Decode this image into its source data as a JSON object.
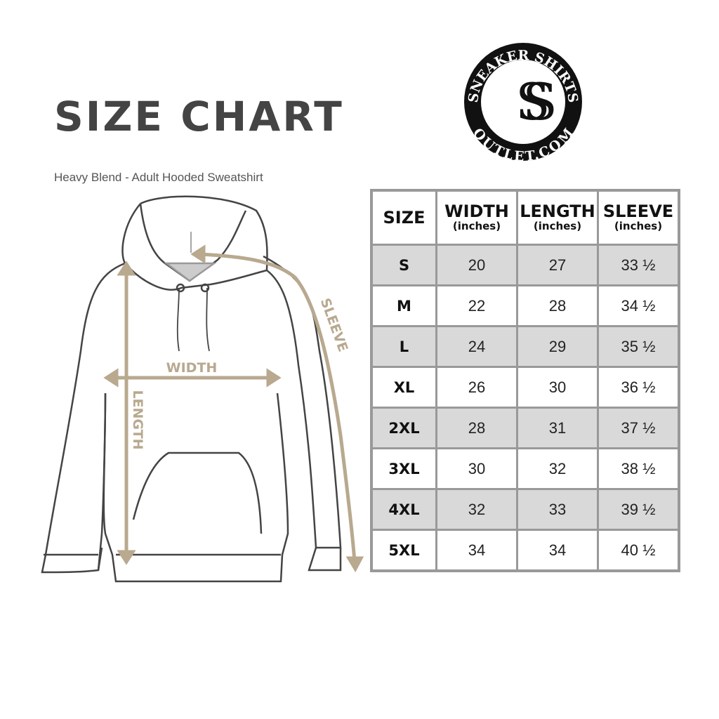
{
  "header": {
    "title": "SIZE CHART",
    "subtitle": "Heavy Blend - Adult Hooded Sweatshirt"
  },
  "logo": {
    "text_top": "SNEAKER SHIRTS",
    "text_bottom": "OUTLET.COM",
    "monogram": "SS"
  },
  "diagram": {
    "labels": {
      "width": "WIDTH",
      "length": "LENGTH",
      "sleeve": "SLEEVE"
    },
    "accent_color": "#b8a98f"
  },
  "table": {
    "headers": [
      {
        "label": "SIZE",
        "unit": ""
      },
      {
        "label": "WIDTH",
        "unit": "(inches)"
      },
      {
        "label": "LENGTH",
        "unit": "(inches)"
      },
      {
        "label": "SLEEVE",
        "unit": "(inches)"
      }
    ],
    "rows": [
      [
        "S",
        "20",
        "27",
        "33 ½"
      ],
      [
        "M",
        "22",
        "28",
        "34 ½"
      ],
      [
        "L",
        "24",
        "29",
        "35 ½"
      ],
      [
        "XL",
        "26",
        "30",
        "36 ½"
      ],
      [
        "2XL",
        "28",
        "31",
        "37 ½"
      ],
      [
        "3XL",
        "30",
        "32",
        "38 ½"
      ],
      [
        "4XL",
        "32",
        "33",
        "39 ½"
      ],
      [
        "5XL",
        "34",
        "34",
        "40 ½"
      ]
    ],
    "shade_color": "#d9d9d9"
  }
}
